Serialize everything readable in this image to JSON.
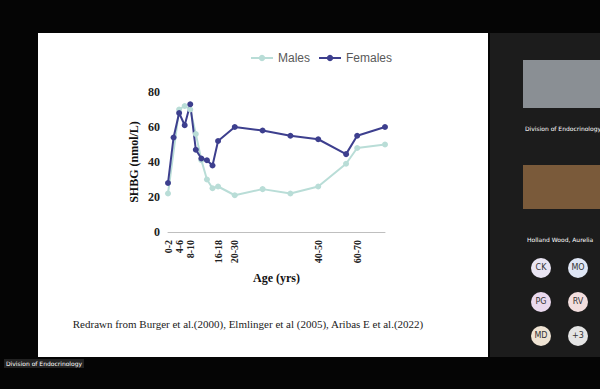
{
  "chart_data": {
    "type": "line",
    "x_label": "Age (yrs)",
    "y_label": "SHBG (nmol/L)",
    "categories": [
      "0-2",
      null,
      "4-6",
      null,
      "8-10",
      null,
      null,
      null,
      null,
      "16-18",
      null,
      null,
      "20-30",
      null,
      null,
      null,
      null,
      null,
      null,
      null,
      null,
      null,
      null,
      null,
      null,
      null,
      null,
      "40-50",
      null,
      null,
      null,
      null,
      null,
      null,
      "60-70",
      null,
      null,
      null,
      null,
      null
    ],
    "series": [
      {
        "name": "Males",
        "color": "#b9ddd7",
        "values": [
          22,
          null,
          70,
          72,
          70,
          56,
          41,
          30,
          25,
          26,
          null,
          null,
          21,
          null,
          null,
          null,
          null,
          24.5,
          null,
          null,
          null,
          null,
          22,
          null,
          null,
          null,
          null,
          26,
          null,
          null,
          null,
          null,
          39,
          null,
          48,
          null,
          null,
          null,
          null,
          50
        ]
      },
      {
        "name": "Females",
        "color": "#3d3f8e",
        "values": [
          28,
          54,
          68,
          61,
          73,
          47,
          42,
          41,
          38,
          52,
          null,
          null,
          60,
          null,
          null,
          null,
          null,
          58,
          null,
          null,
          null,
          null,
          55,
          null,
          null,
          null,
          null,
          53,
          null,
          null,
          null,
          null,
          44.5,
          null,
          55,
          null,
          null,
          null,
          null,
          60
        ]
      }
    ],
    "ylim": [
      0,
      80
    ],
    "yticks": [
      0,
      20,
      40,
      60,
      80
    ],
    "grid": false,
    "legend": "top",
    "marker": "circle",
    "annotations": [
      "Redrawn from Burger et al.(2000), Elmlinger et al (2005), Aribas E et al.(2022)"
    ]
  },
  "screen": {
    "panel_labels": [
      "Division of Endocrinology",
      "Holland Wood, Aurelia"
    ],
    "footer_label": "Division of Endocrinology",
    "participants": [
      "CK",
      "MO",
      "PG",
      "RV",
      "MD",
      "+3"
    ]
  }
}
